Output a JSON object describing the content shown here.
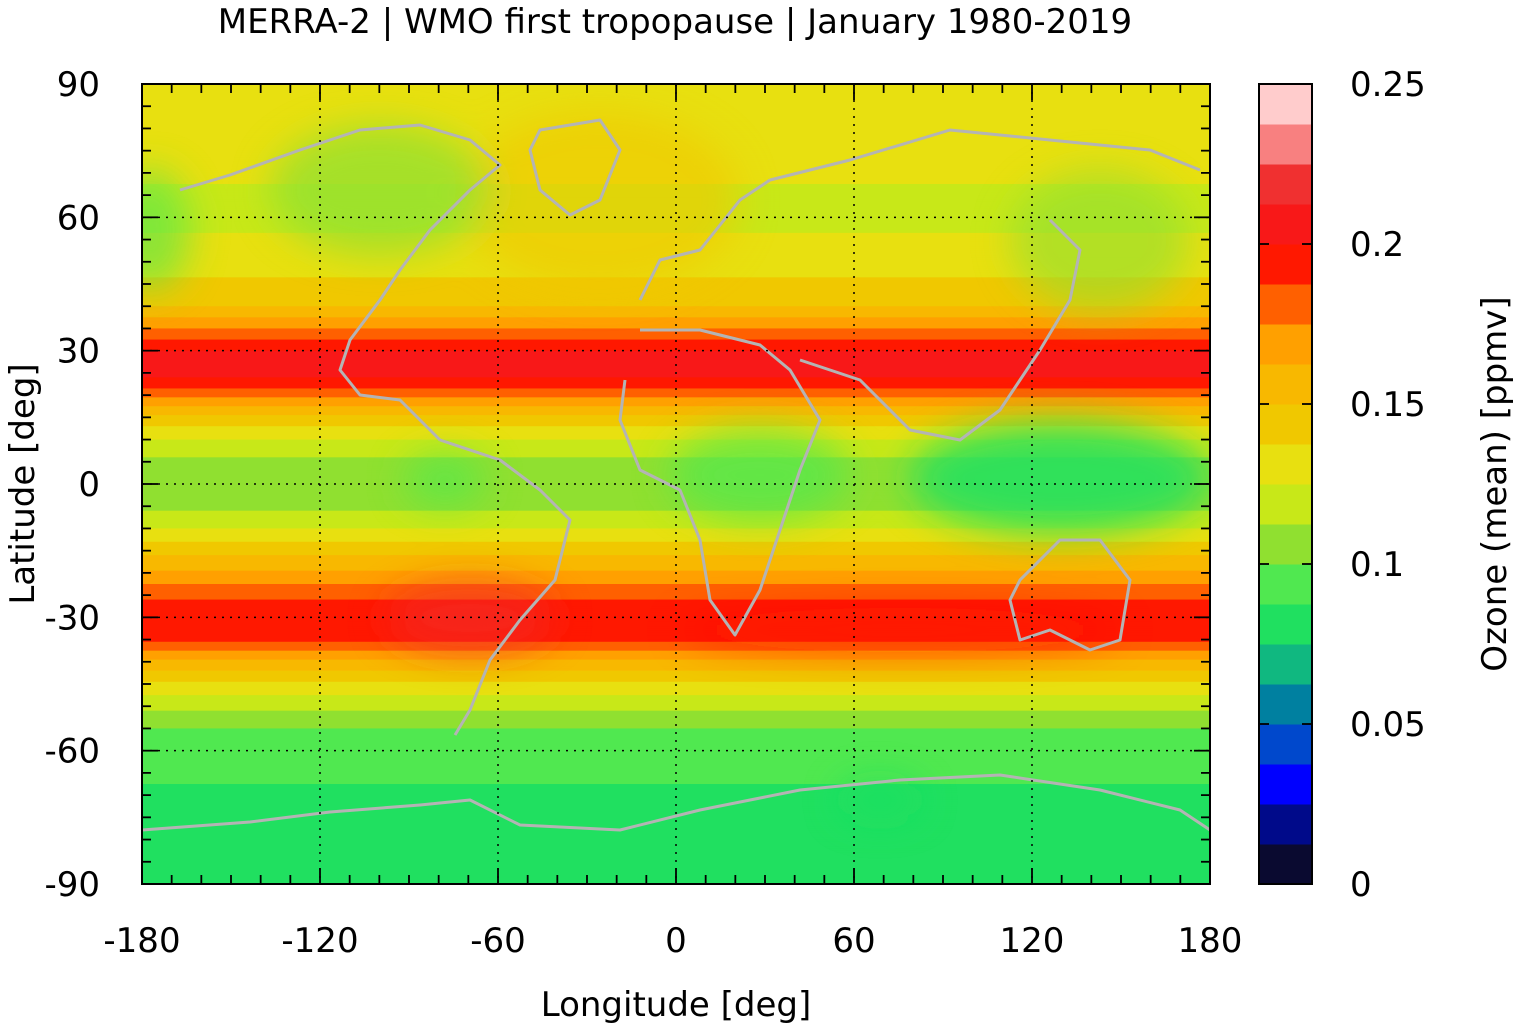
{
  "chart_data": {
    "type": "heatmap",
    "title": "MERRA-2 | WMO first tropopause | January 1980-2019",
    "xlabel": "Longitude [deg]",
    "ylabel": "Latitude [deg]",
    "colorbar_label": "Ozone (mean) [ppmv]",
    "xlim": [
      -180,
      180
    ],
    "ylim": [
      -90,
      90
    ],
    "x_ticks": [
      -180,
      -120,
      -60,
      0,
      60,
      120,
      180
    ],
    "y_ticks": [
      90,
      60,
      30,
      0,
      -30,
      -60,
      -90
    ],
    "colorbar_ticks": [
      0.25,
      0.2,
      0.15,
      0.1,
      0.05,
      0
    ],
    "colorbar_range": [
      0,
      0.25
    ],
    "grid": true,
    "colorbar_levels": [
      {
        "from": 0.0,
        "to": 0.0125,
        "color": "#0a0a30"
      },
      {
        "from": 0.0125,
        "to": 0.025,
        "color": "#000a8a"
      },
      {
        "from": 0.025,
        "to": 0.0375,
        "color": "#0000ff"
      },
      {
        "from": 0.0375,
        "to": 0.05,
        "color": "#0048cc"
      },
      {
        "from": 0.05,
        "to": 0.0625,
        "color": "#0080a0"
      },
      {
        "from": 0.0625,
        "to": 0.075,
        "color": "#10b880"
      },
      {
        "from": 0.075,
        "to": 0.0875,
        "color": "#20e060"
      },
      {
        "from": 0.0875,
        "to": 0.1,
        "color": "#50e850"
      },
      {
        "from": 0.1,
        "to": 0.1125,
        "color": "#90e030"
      },
      {
        "from": 0.1125,
        "to": 0.125,
        "color": "#c8e818"
      },
      {
        "from": 0.125,
        "to": 0.1375,
        "color": "#e8e010"
      },
      {
        "from": 0.1375,
        "to": 0.15,
        "color": "#f0c800"
      },
      {
        "from": 0.15,
        "to": 0.1625,
        "color": "#f8b800"
      },
      {
        "from": 0.1625,
        "to": 0.175,
        "color": "#ffa000"
      },
      {
        "from": 0.175,
        "to": 0.1875,
        "color": "#ff6000"
      },
      {
        "from": 0.1875,
        "to": 0.2,
        "color": "#ff1800"
      },
      {
        "from": 0.2,
        "to": 0.2125,
        "color": "#f81818"
      },
      {
        "from": 0.2125,
        "to": 0.225,
        "color": "#f03030"
      },
      {
        "from": 0.225,
        "to": 0.2375,
        "color": "#f88080"
      },
      {
        "from": 0.2375,
        "to": 0.25,
        "color": "#ffcccc"
      }
    ],
    "zonal_profile_lat": [
      90,
      80,
      70,
      60,
      50,
      40,
      35,
      30,
      25,
      20,
      15,
      10,
      5,
      0,
      -5,
      -10,
      -15,
      -20,
      -25,
      -30,
      -35,
      -40,
      -45,
      -50,
      -55,
      -60,
      -65,
      -70,
      -80,
      -90
    ],
    "zonal_profile_value": [
      0.125,
      0.128,
      0.126,
      0.122,
      0.13,
      0.15,
      0.175,
      0.2,
      0.205,
      0.18,
      0.145,
      0.125,
      0.11,
      0.105,
      0.11,
      0.125,
      0.145,
      0.165,
      0.185,
      0.2,
      0.19,
      0.16,
      0.135,
      0.115,
      0.1,
      0.095,
      0.09,
      0.085,
      0.08,
      0.08
    ],
    "colors": {
      "coastline": "#b4b4b4",
      "grid": "#000000"
    }
  }
}
